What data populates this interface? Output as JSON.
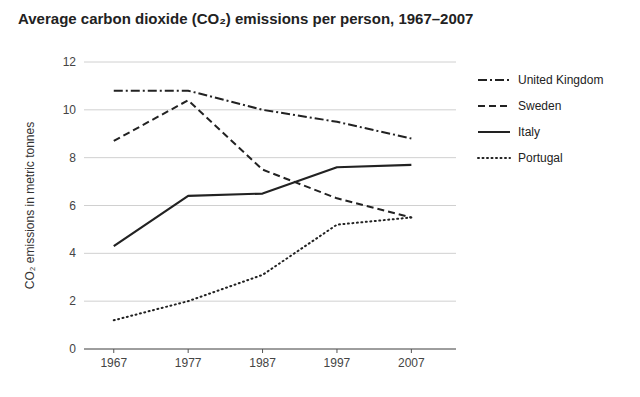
{
  "chart_data": {
    "type": "line",
    "title": "Average carbon dioxide (CO₂) emissions per person, 1967–2007",
    "ylabel": "CO₂ emissions in metric tonnes",
    "x": [
      1967,
      1977,
      1987,
      1997,
      2007
    ],
    "series": [
      {
        "name": "United Kingdom",
        "color": "#222222",
        "line_style": "dashdot",
        "values": [
          10.8,
          10.8,
          10.0,
          9.5,
          8.8
        ]
      },
      {
        "name": "Sweden",
        "color": "#222222",
        "line_style": "dashed",
        "values": [
          8.7,
          10.4,
          7.5,
          6.3,
          5.5
        ]
      },
      {
        "name": "Italy",
        "color": "#222222",
        "line_style": "solid",
        "values": [
          4.3,
          6.4,
          6.5,
          7.6,
          7.7
        ]
      },
      {
        "name": "Portugal",
        "color": "#222222",
        "line_style": "dotted",
        "values": [
          1.2,
          2.0,
          3.1,
          5.2,
          5.5
        ]
      }
    ],
    "xlim": [
      1963,
      2013
    ],
    "ylim": [
      0,
      12
    ],
    "xticks": [
      1967,
      1977,
      1987,
      1997,
      2007
    ],
    "yticks": [
      0,
      2,
      4,
      6,
      8,
      10,
      12
    ],
    "grid": true,
    "legend": "right"
  }
}
